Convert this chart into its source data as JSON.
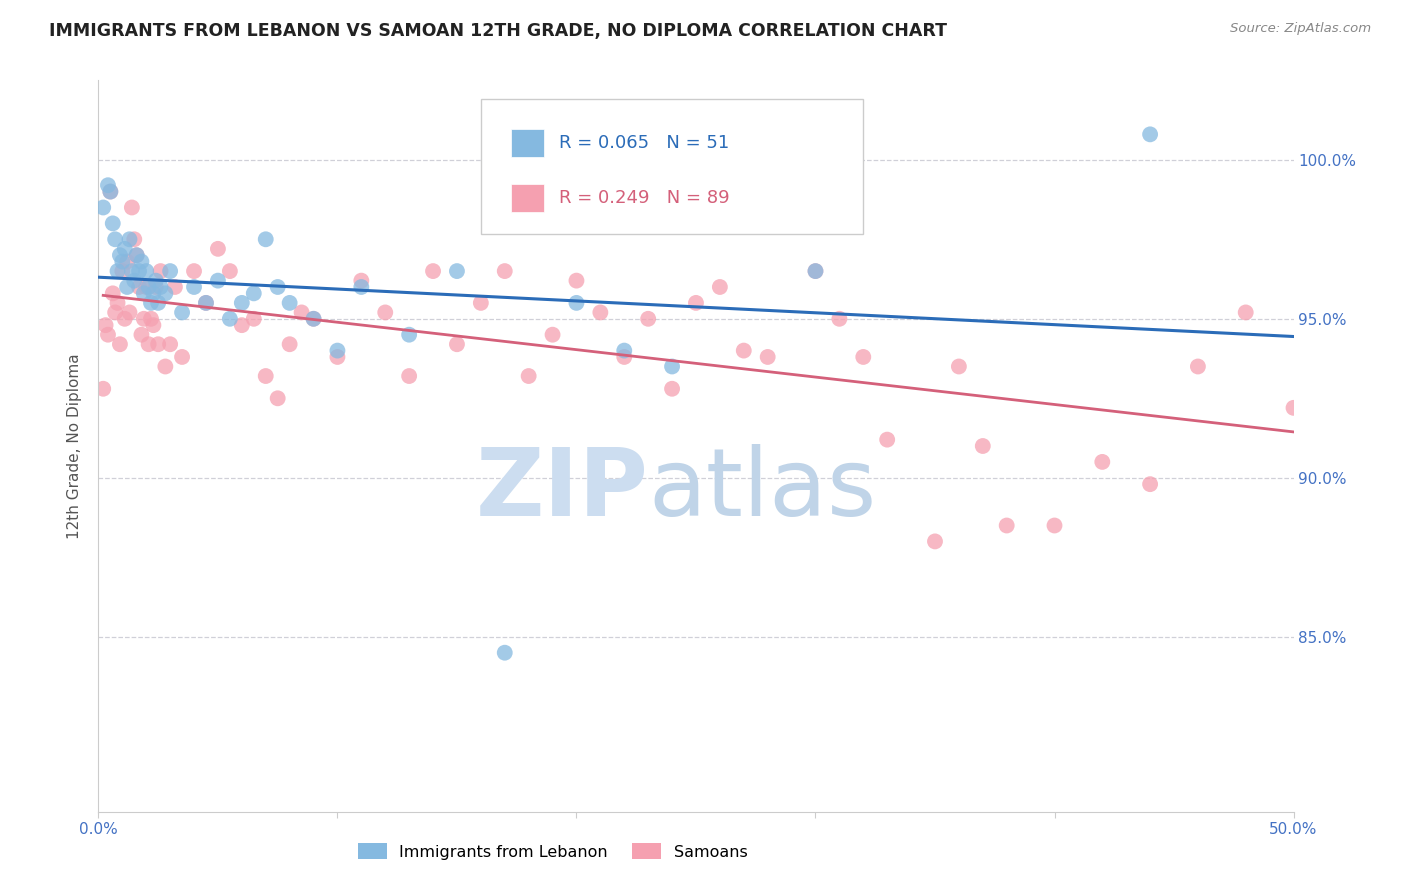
{
  "title": "IMMIGRANTS FROM LEBANON VS SAMOAN 12TH GRADE, NO DIPLOMA CORRELATION CHART",
  "source": "Source: ZipAtlas.com",
  "ylabel": "12th Grade, No Diploma",
  "x_min": 0.0,
  "x_max": 50.0,
  "y_min": 79.5,
  "y_max": 102.5,
  "lebanon_R": 0.065,
  "lebanon_N": 51,
  "samoan_R": 0.249,
  "samoan_N": 89,
  "lebanon_color": "#85b9e0",
  "samoan_color": "#f5a0b0",
  "lebanon_line_color": "#2b6cb8",
  "samoan_line_color": "#d4607a",
  "samoan_dash_color": "#e8a0b0",
  "watermark_zip": "ZIP",
  "watermark_atlas": "atlas",
  "watermark_color": "#dce8f5",
  "lebanon_x": [
    0.2,
    0.4,
    0.5,
    0.6,
    0.7,
    0.8,
    0.9,
    1.0,
    1.1,
    1.2,
    1.3,
    1.4,
    1.5,
    1.6,
    1.7,
    1.8,
    1.9,
    2.0,
    2.1,
    2.2,
    2.3,
    2.4,
    2.5,
    2.6,
    2.8,
    3.0,
    3.5,
    4.0,
    4.5,
    5.0,
    5.5,
    6.0,
    6.5,
    7.0,
    7.5,
    8.0,
    9.0,
    10.0,
    11.0,
    13.0,
    15.0,
    17.0,
    20.0,
    22.0,
    24.0,
    30.0,
    44.0
  ],
  "lebanon_y": [
    98.5,
    99.2,
    99.0,
    98.0,
    97.5,
    96.5,
    97.0,
    96.8,
    97.2,
    96.0,
    97.5,
    96.5,
    96.2,
    97.0,
    96.5,
    96.8,
    95.8,
    96.5,
    96.0,
    95.5,
    95.8,
    96.2,
    95.5,
    96.0,
    95.8,
    96.5,
    95.2,
    96.0,
    95.5,
    96.2,
    95.0,
    95.5,
    95.8,
    97.5,
    96.0,
    95.5,
    95.0,
    94.0,
    96.0,
    94.5,
    96.5,
    84.5,
    95.5,
    94.0,
    93.5,
    96.5,
    100.8
  ],
  "samoan_x": [
    0.2,
    0.3,
    0.4,
    0.5,
    0.6,
    0.7,
    0.8,
    0.9,
    1.0,
    1.1,
    1.2,
    1.3,
    1.4,
    1.5,
    1.6,
    1.7,
    1.8,
    1.9,
    2.0,
    2.1,
    2.2,
    2.3,
    2.4,
    2.5,
    2.6,
    2.8,
    3.0,
    3.2,
    3.5,
    4.0,
    4.5,
    5.0,
    5.5,
    6.0,
    6.5,
    7.0,
    7.5,
    8.0,
    8.5,
    9.0,
    10.0,
    11.0,
    12.0,
    13.0,
    14.0,
    15.0,
    16.0,
    17.0,
    18.0,
    19.0,
    20.0,
    21.0,
    22.0,
    23.0,
    24.0,
    25.0,
    26.0,
    27.0,
    28.0,
    30.0,
    31.0,
    32.0,
    33.0,
    35.0,
    36.0,
    37.0,
    38.0,
    40.0,
    42.0,
    44.0,
    46.0,
    48.0,
    50.0
  ],
  "samoan_y": [
    92.8,
    94.8,
    94.5,
    99.0,
    95.8,
    95.2,
    95.5,
    94.2,
    96.5,
    95.0,
    96.8,
    95.2,
    98.5,
    97.5,
    97.0,
    96.0,
    94.5,
    95.0,
    96.0,
    94.2,
    95.0,
    94.8,
    96.0,
    94.2,
    96.5,
    93.5,
    94.2,
    96.0,
    93.8,
    96.5,
    95.5,
    97.2,
    96.5,
    94.8,
    95.0,
    93.2,
    92.5,
    94.2,
    95.2,
    95.0,
    93.8,
    96.2,
    95.2,
    93.2,
    96.5,
    94.2,
    95.5,
    96.5,
    93.2,
    94.5,
    96.2,
    95.2,
    93.8,
    95.0,
    92.8,
    95.5,
    96.0,
    94.0,
    93.8,
    96.5,
    95.0,
    93.8,
    91.2,
    88.0,
    93.5,
    91.0,
    88.5,
    88.5,
    90.5,
    89.8,
    93.5,
    95.2,
    92.2
  ],
  "grid_color": "#d0d0d8",
  "spine_color": "#cccccc",
  "tick_label_color": "#4472c4",
  "ylabel_color": "#555555",
  "title_color": "#222222",
  "source_color": "#888888"
}
